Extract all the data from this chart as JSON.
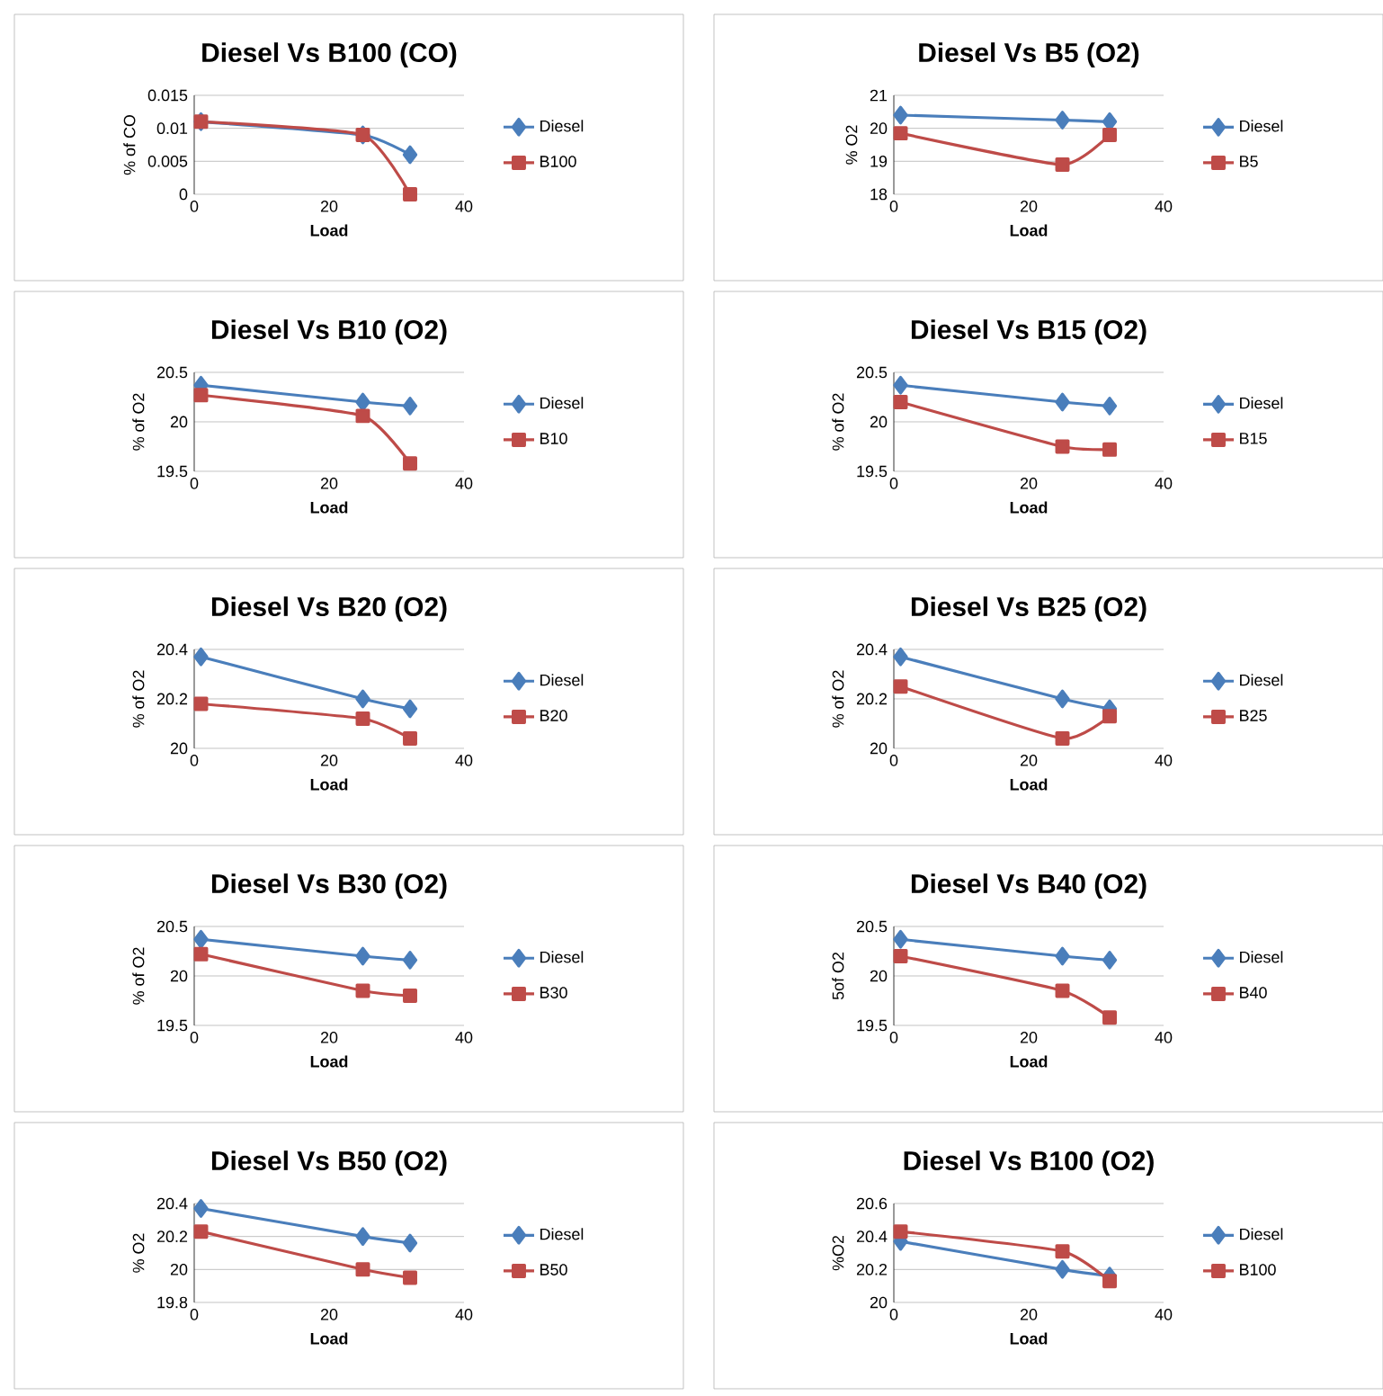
{
  "chart_data": [
    {
      "type": "line",
      "title": "Diesel Vs B100 (CO)",
      "xlabel": "Load",
      "ylabel": "% of CO",
      "x": [
        1,
        25,
        32
      ],
      "xlim": [
        0,
        40
      ],
      "xticks": [
        0,
        20,
        40
      ],
      "ylim": [
        0,
        0.015
      ],
      "yticks": [
        0,
        0.005,
        0.01,
        0.015
      ],
      "grid": "y",
      "legend": "right",
      "series": [
        {
          "name": "Diesel",
          "color": "#4a7ebb",
          "marker": "diamond",
          "values": [
            0.011,
            0.009,
            0.006
          ]
        },
        {
          "name": "B100",
          "color": "#be4b48",
          "marker": "square",
          "values": [
            0.011,
            0.009,
            0
          ]
        }
      ]
    },
    {
      "type": "line",
      "title": "Diesel Vs B5 (O2)",
      "xlabel": "Load",
      "ylabel": "% O2",
      "x": [
        1,
        25,
        32
      ],
      "xlim": [
        0,
        40
      ],
      "xticks": [
        0,
        20,
        40
      ],
      "ylim": [
        18,
        21
      ],
      "yticks": [
        18,
        19,
        20,
        21
      ],
      "grid": "y",
      "legend": "right",
      "series": [
        {
          "name": "Diesel",
          "color": "#4a7ebb",
          "marker": "diamond",
          "values": [
            20.4,
            20.25,
            20.2
          ]
        },
        {
          "name": "B5",
          "color": "#be4b48",
          "marker": "square",
          "values": [
            19.85,
            18.9,
            19.8
          ]
        }
      ]
    },
    {
      "type": "line",
      "title": "Diesel Vs B10 (O2)",
      "xlabel": "Load",
      "ylabel": "% of O2",
      "x": [
        1,
        25,
        32
      ],
      "xlim": [
        0,
        40
      ],
      "xticks": [
        0,
        20,
        40
      ],
      "ylim": [
        19.5,
        20.5
      ],
      "yticks": [
        19.5,
        20,
        20.5
      ],
      "grid": "y",
      "legend": "right",
      "series": [
        {
          "name": "Diesel",
          "color": "#4a7ebb",
          "marker": "diamond",
          "values": [
            20.37,
            20.2,
            20.16
          ]
        },
        {
          "name": "B10",
          "color": "#be4b48",
          "marker": "square",
          "values": [
            20.27,
            20.06,
            19.58
          ]
        }
      ]
    },
    {
      "type": "line",
      "title": "Diesel Vs B15 (O2)",
      "xlabel": "Load",
      "ylabel": "% of O2",
      "x": [
        1,
        25,
        32
      ],
      "xlim": [
        0,
        40
      ],
      "xticks": [
        0,
        20,
        40
      ],
      "ylim": [
        19.5,
        20.5
      ],
      "yticks": [
        19.5,
        20,
        20.5
      ],
      "grid": "y",
      "legend": "right",
      "series": [
        {
          "name": "Diesel",
          "color": "#4a7ebb",
          "marker": "diamond",
          "values": [
            20.37,
            20.2,
            20.16
          ]
        },
        {
          "name": "B15",
          "color": "#be4b48",
          "marker": "square",
          "values": [
            20.2,
            19.75,
            19.72
          ]
        }
      ]
    },
    {
      "type": "line",
      "title": "Diesel Vs B20 (O2)",
      "xlabel": "Load",
      "ylabel": "% of O2",
      "x": [
        1,
        25,
        32
      ],
      "xlim": [
        0,
        40
      ],
      "xticks": [
        0,
        20,
        40
      ],
      "ylim": [
        20,
        20.4
      ],
      "yticks": [
        20,
        20.2,
        20.4
      ],
      "grid": "y",
      "legend": "right",
      "series": [
        {
          "name": "Diesel",
          "color": "#4a7ebb",
          "marker": "diamond",
          "values": [
            20.37,
            20.2,
            20.16
          ]
        },
        {
          "name": "B20",
          "color": "#be4b48",
          "marker": "square",
          "values": [
            20.18,
            20.12,
            20.04
          ]
        }
      ]
    },
    {
      "type": "line",
      "title": "Diesel Vs B25 (O2)",
      "xlabel": "Load",
      "ylabel": "% of O2",
      "x": [
        1,
        25,
        32
      ],
      "xlim": [
        0,
        40
      ],
      "xticks": [
        0,
        20,
        40
      ],
      "ylim": [
        20,
        20.4
      ],
      "yticks": [
        20,
        20.2,
        20.4
      ],
      "grid": "y",
      "legend": "right",
      "series": [
        {
          "name": "Diesel",
          "color": "#4a7ebb",
          "marker": "diamond",
          "values": [
            20.37,
            20.2,
            20.16
          ]
        },
        {
          "name": "B25",
          "color": "#be4b48",
          "marker": "square",
          "values": [
            20.25,
            20.04,
            20.13
          ]
        }
      ]
    },
    {
      "type": "line",
      "title": "Diesel Vs B30 (O2)",
      "xlabel": "Load",
      "ylabel": "% of O2",
      "x": [
        1,
        25,
        32
      ],
      "xlim": [
        0,
        40
      ],
      "xticks": [
        0,
        20,
        40
      ],
      "ylim": [
        19.5,
        20.5
      ],
      "yticks": [
        19.5,
        20,
        20.5
      ],
      "grid": "y",
      "legend": "right",
      "series": [
        {
          "name": "Diesel",
          "color": "#4a7ebb",
          "marker": "diamond",
          "values": [
            20.37,
            20.2,
            20.16
          ]
        },
        {
          "name": "B30",
          "color": "#be4b48",
          "marker": "square",
          "values": [
            20.22,
            19.85,
            19.8
          ]
        }
      ]
    },
    {
      "type": "line",
      "title": "Diesel Vs B40 (O2)",
      "xlabel": "Load",
      "ylabel": "5of O2",
      "x": [
        1,
        25,
        32
      ],
      "xlim": [
        0,
        40
      ],
      "xticks": [
        0,
        20,
        40
      ],
      "ylim": [
        19.5,
        20.5
      ],
      "yticks": [
        19.5,
        20,
        20.5
      ],
      "grid": "y",
      "legend": "right",
      "series": [
        {
          "name": "Diesel",
          "color": "#4a7ebb",
          "marker": "diamond",
          "values": [
            20.37,
            20.2,
            20.16
          ]
        },
        {
          "name": "B40",
          "color": "#be4b48",
          "marker": "square",
          "values": [
            20.2,
            19.85,
            19.58
          ]
        }
      ]
    },
    {
      "type": "line",
      "title": "Diesel Vs B50 (O2)",
      "xlabel": "Load",
      "ylabel": "% O2",
      "x": [
        1,
        25,
        32
      ],
      "xlim": [
        0,
        40
      ],
      "xticks": [
        0,
        20,
        40
      ],
      "ylim": [
        19.8,
        20.4
      ],
      "yticks": [
        19.8,
        20,
        20.2,
        20.4
      ],
      "grid": "y",
      "legend": "right",
      "series": [
        {
          "name": "Diesel",
          "color": "#4a7ebb",
          "marker": "diamond",
          "values": [
            20.37,
            20.2,
            20.16
          ]
        },
        {
          "name": "B50",
          "color": "#be4b48",
          "marker": "square",
          "values": [
            20.23,
            20.0,
            19.95
          ]
        }
      ]
    },
    {
      "type": "line",
      "title": "Diesel Vs B100 (O2)",
      "xlabel": "Load",
      "ylabel": "%O2",
      "x": [
        1,
        25,
        32
      ],
      "xlim": [
        0,
        40
      ],
      "xticks": [
        0,
        20,
        40
      ],
      "ylim": [
        20,
        20.6
      ],
      "yticks": [
        20,
        20.2,
        20.4,
        20.6
      ],
      "grid": "y",
      "legend": "right",
      "series": [
        {
          "name": "Diesel",
          "color": "#4a7ebb",
          "marker": "diamond",
          "values": [
            20.37,
            20.2,
            20.16
          ]
        },
        {
          "name": "B100",
          "color": "#be4b48",
          "marker": "square",
          "values": [
            20.43,
            20.31,
            20.13
          ]
        }
      ]
    }
  ]
}
